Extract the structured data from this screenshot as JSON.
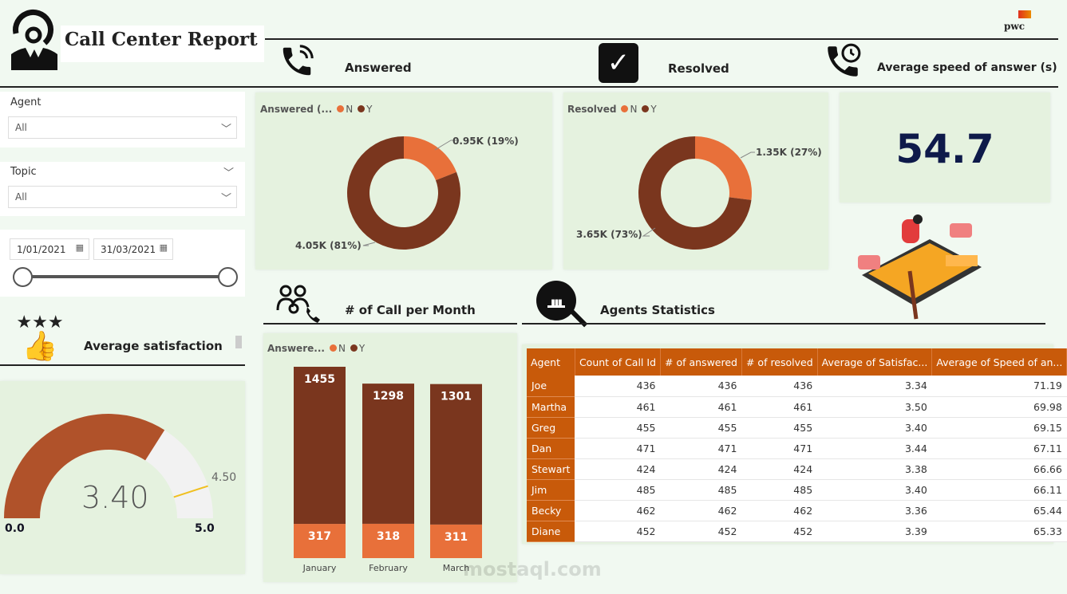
{
  "header": {
    "title": "Call Center Report",
    "brand": "pwc"
  },
  "sections": {
    "answered": "Answered",
    "resolved": "Resolved",
    "speed": "Average speed of answer (s)",
    "calls_month": "# of Call per Month",
    "agents": "Agents Statistics",
    "satisfaction": "Average satisfaction"
  },
  "filters": {
    "agent_label": "Agent",
    "agent_value": "All",
    "topic_label": "Topic",
    "topic_value": "All",
    "date_start": "1/01/2021",
    "date_end": "31/03/2021"
  },
  "colors": {
    "N": "#e8703a",
    "Y": "#7a361e",
    "header": "#c85a0a",
    "gauge": "#b0522a"
  },
  "answered_chart": {
    "legend_title": "Answered (...",
    "legend": [
      "N",
      "Y"
    ],
    "n_label": "0.95K (19%)",
    "y_label": "4.05K (81%)",
    "n_pct": 19
  },
  "resolved_chart": {
    "legend_title": "Resolved",
    "legend": [
      "N",
      "Y"
    ],
    "n_label": "1.35K (27%)",
    "y_label": "3.65K (73%)",
    "n_pct": 27
  },
  "speed_kpi": "54.7",
  "gauge": {
    "value_label": "3.40",
    "value": 3.4,
    "min_label": "0.0",
    "max_label": "5.0",
    "target_label": "4.50",
    "min": 0,
    "max": 5,
    "target": 4.5
  },
  "chart_data": {
    "type": "bar",
    "stacked": true,
    "legend_title": "Answere...",
    "categories": [
      "January",
      "February",
      "March"
    ],
    "series": [
      {
        "name": "N",
        "values": [
          317,
          318,
          311
        ]
      },
      {
        "name": "Y",
        "values": [
          1455,
          1298,
          1301
        ]
      }
    ]
  },
  "table": {
    "columns": [
      "Agent",
      "Count of Call Id",
      "# of answered",
      "# of resolved",
      "Average of Satisfac...",
      "Average of Speed of an..."
    ],
    "rows": [
      [
        "Joe",
        "436",
        "436",
        "436",
        "3.34",
        "71.19"
      ],
      [
        "Martha",
        "461",
        "461",
        "461",
        "3.50",
        "69.98"
      ],
      [
        "Greg",
        "455",
        "455",
        "455",
        "3.40",
        "69.15"
      ],
      [
        "Dan",
        "471",
        "471",
        "471",
        "3.44",
        "67.11"
      ],
      [
        "Stewart",
        "424",
        "424",
        "424",
        "3.38",
        "66.66"
      ],
      [
        "Jim",
        "485",
        "485",
        "485",
        "3.40",
        "66.11"
      ],
      [
        "Becky",
        "462",
        "462",
        "462",
        "3.36",
        "65.44"
      ],
      [
        "Diane",
        "452",
        "452",
        "452",
        "3.39",
        "65.33"
      ]
    ]
  },
  "watermark": "mostaql.com"
}
